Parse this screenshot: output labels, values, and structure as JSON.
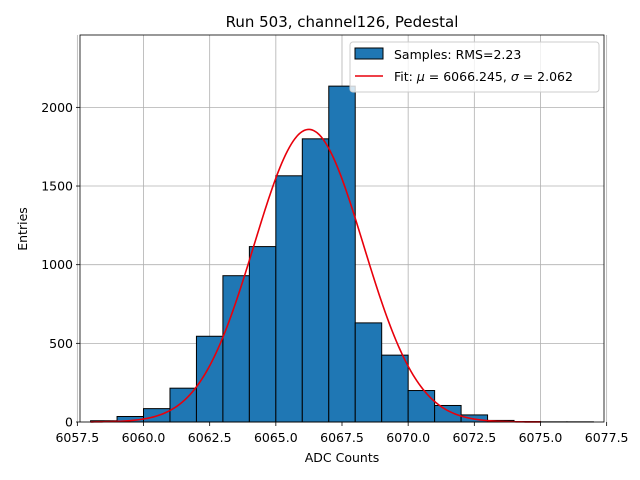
{
  "chart_data": {
    "type": "histogram",
    "title": "Run 503, channel126, Pedestal",
    "xlabel": "ADC Counts",
    "ylabel": "Entries",
    "xlim": [
      6057.6,
      6077.4
    ],
    "ylim": [
      0,
      2460
    ],
    "grid": true,
    "xticks": [
      6057.5,
      6060.0,
      6062.5,
      6065.0,
      6067.5,
      6070.0,
      6072.5,
      6075.0,
      6077.5
    ],
    "xtick_labels": [
      "6057.5",
      "6060.0",
      "6062.5",
      "6065.0",
      "6067.5",
      "6070.0",
      "6072.5",
      "6075.0",
      "6077.5"
    ],
    "yticks": [
      0,
      500,
      1000,
      1500,
      2000
    ],
    "ytick_labels": [
      "0",
      "500",
      "1000",
      "1500",
      "2000"
    ],
    "bins": [
      {
        "left": 6058,
        "right": 6059,
        "count": 8
      },
      {
        "left": 6059,
        "right": 6060,
        "count": 35
      },
      {
        "left": 6060,
        "right": 6061,
        "count": 85
      },
      {
        "left": 6061,
        "right": 6062,
        "count": 215
      },
      {
        "left": 6062,
        "right": 6063,
        "count": 545
      },
      {
        "left": 6063,
        "right": 6064,
        "count": 930
      },
      {
        "left": 6064,
        "right": 6065,
        "count": 1115
      },
      {
        "left": 6065,
        "right": 6066,
        "count": 1565
      },
      {
        "left": 6066,
        "right": 6067,
        "count": 1800
      },
      {
        "left": 6067,
        "right": 6068,
        "count": 2135
      },
      {
        "left": 6068,
        "right": 6069,
        "count": 630
      },
      {
        "left": 6069,
        "right": 6070,
        "count": 425
      },
      {
        "left": 6070,
        "right": 6071,
        "count": 200
      },
      {
        "left": 6071,
        "right": 6072,
        "count": 105
      },
      {
        "left": 6072,
        "right": 6073,
        "count": 45
      },
      {
        "left": 6073,
        "right": 6074,
        "count": 10
      },
      {
        "left": 6074,
        "right": 6075,
        "count": 3
      },
      {
        "left": 6075,
        "right": 6076,
        "count": 1
      },
      {
        "left": 6076,
        "right": 6077,
        "count": 1
      }
    ],
    "fit": {
      "mu": 6066.245,
      "sigma": 2.062,
      "amplitude": 1860,
      "x_range": [
        6058,
        6075
      ]
    },
    "legend": {
      "placement": "top-right",
      "samples_label": "Samples: RMS=2.23",
      "fit_prefix": "Fit: ",
      "mu_symbol": "μ",
      "mu_text": " = 6066.245, ",
      "sigma_symbol": "σ",
      "sigma_text": " = 2.062"
    },
    "colors": {
      "bar_fill": "#1f77b4",
      "bar_edge": "#000000",
      "fit_line": "#e8000b",
      "grid": "#b0b0b0"
    }
  }
}
